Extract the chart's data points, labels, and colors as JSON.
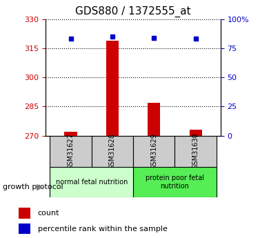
{
  "title": "GDS880 / 1372555_at",
  "samples": [
    "GSM31627",
    "GSM31628",
    "GSM31629",
    "GSM31630"
  ],
  "bar_values": [
    272,
    319,
    287,
    273
  ],
  "bar_base": 270,
  "percentile_values": [
    83,
    85,
    84,
    83
  ],
  "ylim_left": [
    270,
    330
  ],
  "ylim_right": [
    0,
    100
  ],
  "yticks_left": [
    270,
    285,
    300,
    315,
    330
  ],
  "yticks_right": [
    0,
    25,
    50,
    75,
    100
  ],
  "ytick_labels_right": [
    "0",
    "25",
    "50",
    "75",
    "100%"
  ],
  "bar_color": "#cc0000",
  "point_color": "#0000cc",
  "groups": [
    {
      "label": "normal fetal nutrition",
      "samples": [
        0,
        1
      ],
      "color": "#ccffcc"
    },
    {
      "label": "protein poor fetal\nnutrition",
      "samples": [
        2,
        3
      ],
      "color": "#55ee55"
    }
  ],
  "growth_protocol_label": "growth protocol",
  "legend_count_label": "count",
  "legend_percentile_label": "percentile rank within the sample",
  "left_tick_color": "#cc0000",
  "right_tick_color": "#0000cc",
  "title_color": "#000000",
  "sample_box_color": "#cccccc"
}
